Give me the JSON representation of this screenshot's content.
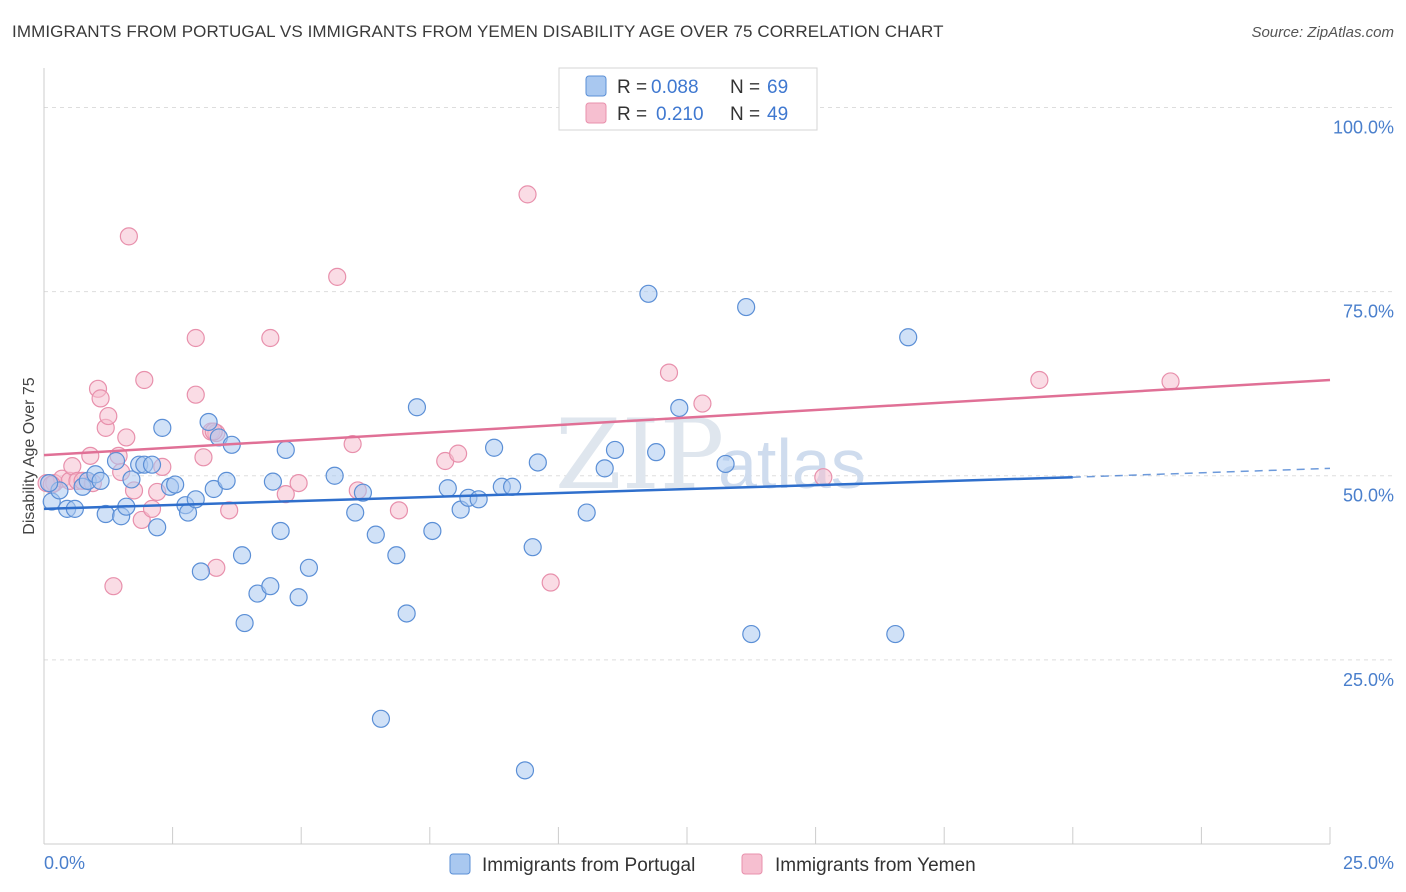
{
  "title": "IMMIGRANTS FROM PORTUGAL VS IMMIGRANTS FROM YEMEN DISABILITY AGE OVER 75 CORRELATION CHART",
  "source": "Source: ZipAtlas.com",
  "watermark": {
    "zip": "ZIP",
    "atlas": "atlas"
  },
  "colors": {
    "portugal_fill": "#a9c8f0",
    "portugal_stroke": "#5b8fd6",
    "portugal_line": "#2f6fcc",
    "yemen_fill": "#f6bfd0",
    "yemen_stroke": "#e890ac",
    "yemen_line": "#e07096"
  },
  "legend_top": {
    "rows": [
      {
        "r_label": "R =",
        "r_value": "0.088",
        "n_label": "N =",
        "n_value": "69"
      },
      {
        "r_label": "R =",
        "r_value": "0.210",
        "n_label": "N =",
        "n_value": "49"
      }
    ]
  },
  "chart_data": {
    "type": "scatter",
    "title": "IMMIGRANTS FROM PORTUGAL VS IMMIGRANTS FROM YEMEN DISABILITY AGE OVER 75 CORRELATION CHART",
    "xlabel": "",
    "ylabel": "Disability Age Over 75",
    "xlim": [
      0,
      25
    ],
    "ylim": [
      0,
      104
    ],
    "x_tick_labels": [
      "0.0%",
      "25.0%"
    ],
    "y_ticks": [
      25,
      50,
      75,
      100
    ],
    "y_tick_labels": [
      "25.0%",
      "50.0%",
      "75.0%",
      "100.0%"
    ],
    "grid": true,
    "legend_position": "bottom",
    "series": [
      {
        "name": "Immigrants from Portugal",
        "trend": {
          "x0": 0,
          "y0": 45.5,
          "x1": 20,
          "y1": 49.8,
          "dash_x1": 25,
          "dash_y1": 51
        },
        "points": [
          [
            0.15,
            46.5
          ],
          [
            0.3,
            48
          ],
          [
            0.45,
            45.5
          ],
          [
            0.6,
            45.5
          ],
          [
            0.75,
            48.5
          ],
          [
            0.85,
            49.3
          ],
          [
            1.0,
            50.2
          ],
          [
            1.1,
            49.3
          ],
          [
            1.2,
            44.8
          ],
          [
            1.4,
            52
          ],
          [
            1.5,
            44.5
          ],
          [
            1.6,
            45.8
          ],
          [
            1.7,
            49.5
          ],
          [
            1.85,
            51.5
          ],
          [
            1.95,
            51.5
          ],
          [
            2.1,
            51.5
          ],
          [
            2.2,
            43
          ],
          [
            2.3,
            56.5
          ],
          [
            2.45,
            48.5
          ],
          [
            2.55,
            48.8
          ],
          [
            2.75,
            46
          ],
          [
            2.8,
            45
          ],
          [
            2.95,
            46.8
          ],
          [
            3.05,
            37
          ],
          [
            3.2,
            57.3
          ],
          [
            3.3,
            48.2
          ],
          [
            3.4,
            55.2
          ],
          [
            3.55,
            49.3
          ],
          [
            3.65,
            54.2
          ],
          [
            3.85,
            39.2
          ],
          [
            3.9,
            30
          ],
          [
            4.15,
            34
          ],
          [
            4.4,
            35
          ],
          [
            4.45,
            49.2
          ],
          [
            4.6,
            42.5
          ],
          [
            4.7,
            53.5
          ],
          [
            4.95,
            33.5
          ],
          [
            5.15,
            37.5
          ],
          [
            5.65,
            50
          ],
          [
            6.05,
            45
          ],
          [
            6.2,
            47.7
          ],
          [
            6.45,
            42
          ],
          [
            6.55,
            17
          ],
          [
            6.85,
            39.2
          ],
          [
            7.05,
            31.3
          ],
          [
            7.25,
            59.3
          ],
          [
            7.55,
            42.5
          ],
          [
            7.85,
            48.3
          ],
          [
            8.1,
            45.4
          ],
          [
            8.25,
            47
          ],
          [
            8.45,
            46.8
          ],
          [
            8.75,
            53.8
          ],
          [
            8.9,
            48.5
          ],
          [
            9.1,
            48.5
          ],
          [
            9.35,
            10
          ],
          [
            9.5,
            40.3
          ],
          [
            9.6,
            51.8
          ],
          [
            10.55,
            45
          ],
          [
            10.9,
            51
          ],
          [
            11.1,
            53.5
          ],
          [
            11.9,
            53.2
          ],
          [
            11.75,
            74.7
          ],
          [
            12.35,
            59.2
          ],
          [
            13.25,
            51.6
          ],
          [
            13.65,
            72.9
          ],
          [
            13.75,
            28.5
          ],
          [
            16.55,
            28.5
          ],
          [
            16.8,
            68.8
          ],
          [
            0.1,
            49
          ]
        ]
      },
      {
        "name": "Immigrants from Yemen",
        "trend": {
          "x0": 0,
          "y0": 52.8,
          "x1": 25,
          "y1": 63
        },
        "points": [
          [
            0.05,
            49
          ],
          [
            0.2,
            49
          ],
          [
            0.35,
            49.6
          ],
          [
            0.5,
            49.3
          ],
          [
            0.55,
            51.3
          ],
          [
            0.65,
            49.3
          ],
          [
            0.75,
            49.3
          ],
          [
            0.9,
            52.7
          ],
          [
            0.95,
            49
          ],
          [
            1.05,
            61.8
          ],
          [
            1.1,
            60.5
          ],
          [
            1.2,
            56.5
          ],
          [
            1.25,
            58.1
          ],
          [
            1.35,
            35
          ],
          [
            1.45,
            52.7
          ],
          [
            1.5,
            50.5
          ],
          [
            1.6,
            55.2
          ],
          [
            1.65,
            82.5
          ],
          [
            1.75,
            48
          ],
          [
            1.9,
            44
          ],
          [
            1.95,
            63
          ],
          [
            2.1,
            45.5
          ],
          [
            2.2,
            47.8
          ],
          [
            2.3,
            51.2
          ],
          [
            2.95,
            68.7
          ],
          [
            2.95,
            61
          ],
          [
            3.1,
            52.5
          ],
          [
            3.25,
            56
          ],
          [
            3.35,
            37.5
          ],
          [
            3.35,
            55.8
          ],
          [
            3.6,
            45.3
          ],
          [
            4.4,
            68.7
          ],
          [
            4.7,
            47.5
          ],
          [
            4.95,
            49
          ],
          [
            5.7,
            77
          ],
          [
            6.0,
            54.3
          ],
          [
            6.1,
            48
          ],
          [
            6.9,
            45.3
          ],
          [
            7.8,
            52
          ],
          [
            8.05,
            53
          ],
          [
            9.4,
            88.2
          ],
          [
            9.85,
            35.5
          ],
          [
            12.15,
            64
          ],
          [
            12.8,
            59.8
          ],
          [
            15.15,
            49.8
          ],
          [
            19.35,
            63
          ],
          [
            21.9,
            62.8
          ],
          [
            3.3,
            56
          ],
          [
            0.15,
            48.8
          ]
        ]
      }
    ]
  }
}
